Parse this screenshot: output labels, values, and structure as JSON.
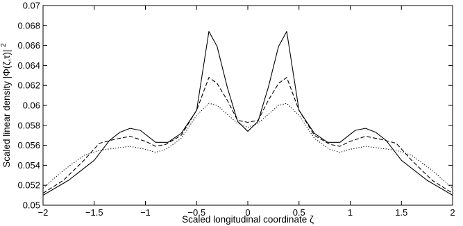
{
  "chart_data": {
    "type": "line",
    "xlabel": "Scaled longitudinal coordinate ζ",
    "ylabel_main": "Scaled linear density |Φ(ζ,τ)|",
    "ylabel_superscript": "2",
    "xlim": [
      -2,
      2
    ],
    "ylim": [
      0.05,
      0.07
    ],
    "xticks": [
      -2,
      -1.5,
      -1,
      -0.5,
      0,
      0.5,
      1,
      1.5,
      2
    ],
    "xtick_labels": [
      "−2",
      "−1.5",
      "−1",
      "−0.5",
      "0",
      "0.5",
      "1",
      "1.5",
      "2"
    ],
    "yticks": [
      0.05,
      0.052,
      0.054,
      0.056,
      0.058,
      0.06,
      0.062,
      0.064,
      0.066,
      0.068,
      0.07
    ],
    "ytick_labels": [
      "0.05",
      "0.052",
      "0.054",
      "0.056",
      "0.058",
      "0.06",
      "0.062",
      "0.064",
      "0.066",
      "0.068",
      "0.07"
    ],
    "grid": false,
    "series": [
      {
        "style": "solid",
        "color": "#000000",
        "x": [
          -2.0,
          -1.75,
          -1.5,
          -1.35,
          -1.25,
          -1.15,
          -1.05,
          -0.9,
          -0.78,
          -0.65,
          -0.5,
          -0.38,
          -0.3,
          -0.2,
          -0.1,
          0.0,
          0.1,
          0.2,
          0.3,
          0.38,
          0.5,
          0.65,
          0.78,
          0.9,
          1.05,
          1.15,
          1.25,
          1.35,
          1.5,
          1.75,
          2.0
        ],
        "y": [
          0.051,
          0.0525,
          0.0545,
          0.0565,
          0.0573,
          0.0577,
          0.0575,
          0.0563,
          0.0563,
          0.0572,
          0.0595,
          0.0674,
          0.0659,
          0.0618,
          0.0584,
          0.0574,
          0.0584,
          0.0618,
          0.0659,
          0.0674,
          0.0595,
          0.0572,
          0.0563,
          0.0563,
          0.0575,
          0.0577,
          0.0573,
          0.0565,
          0.0545,
          0.0525,
          0.051
        ]
      },
      {
        "style": "dashed",
        "color": "#000000",
        "x": [
          -2.0,
          -1.8,
          -1.6,
          -1.45,
          -1.3,
          -1.15,
          -1.0,
          -0.9,
          -0.8,
          -0.65,
          -0.5,
          -0.38,
          -0.3,
          -0.2,
          -0.1,
          0.0,
          0.1,
          0.2,
          0.3,
          0.38,
          0.5,
          0.65,
          0.8,
          0.9,
          1.0,
          1.15,
          1.3,
          1.45,
          1.6,
          1.8,
          2.0
        ],
        "y": [
          0.0512,
          0.0525,
          0.0545,
          0.0562,
          0.0566,
          0.0569,
          0.0564,
          0.0559,
          0.0561,
          0.057,
          0.0595,
          0.0628,
          0.0622,
          0.0605,
          0.0585,
          0.0583,
          0.0585,
          0.0605,
          0.0622,
          0.0628,
          0.0595,
          0.057,
          0.0561,
          0.0559,
          0.0564,
          0.0569,
          0.0566,
          0.0562,
          0.0545,
          0.0525,
          0.0512
        ]
      },
      {
        "style": "dotted",
        "color": "#000000",
        "x": [
          -2.0,
          -1.8,
          -1.6,
          -1.45,
          -1.3,
          -1.15,
          -1.0,
          -0.9,
          -0.8,
          -0.65,
          -0.5,
          -0.38,
          -0.3,
          -0.2,
          -0.1,
          0.0,
          0.1,
          0.2,
          0.3,
          0.38,
          0.5,
          0.65,
          0.8,
          0.9,
          1.0,
          1.15,
          1.3,
          1.45,
          1.6,
          1.8,
          2.0
        ],
        "y": [
          0.0517,
          0.0535,
          0.055,
          0.0555,
          0.0557,
          0.0559,
          0.0556,
          0.0553,
          0.0556,
          0.0567,
          0.059,
          0.0602,
          0.06,
          0.0591,
          0.0582,
          0.0578,
          0.0582,
          0.0591,
          0.06,
          0.0602,
          0.059,
          0.0567,
          0.0556,
          0.0553,
          0.0556,
          0.0559,
          0.0557,
          0.0555,
          0.055,
          0.0535,
          0.0517
        ]
      }
    ]
  }
}
